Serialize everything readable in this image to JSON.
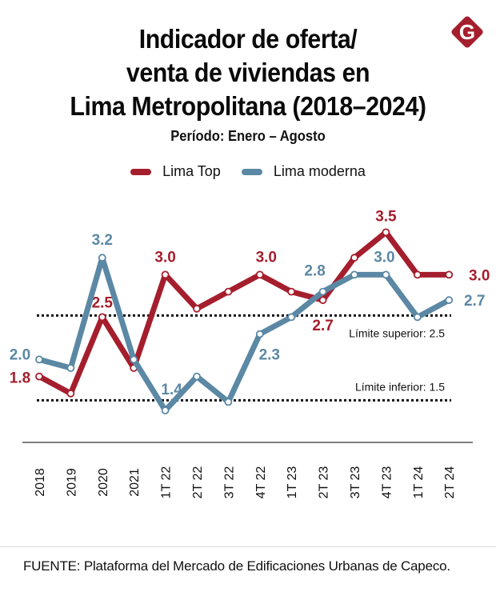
{
  "header": {
    "title_lines": [
      "Indicador de oferta/",
      "venta de viviendas en",
      "Lima Metropolitana (2018–2024)"
    ],
    "subtitle": "Período: Enero – Agosto",
    "logo": {
      "icon": "g-diamond-logo-icon",
      "letter": "G",
      "color": "#A51E2D"
    }
  },
  "footer": {
    "source": "FUENTE: Plataforma del Mercado de Edificaciones Urbanas de Capeco."
  },
  "chart_data": {
    "type": "line",
    "title": "Indicador de oferta/venta de viviendas en Lima Metropolitana (2018–2024)",
    "subtitle": "Período: Enero – Agosto",
    "xlabel": "",
    "ylabel": "",
    "grid": false,
    "legend_position": "top-center",
    "ylim": [
      1.0,
      3.8
    ],
    "categories": [
      "2018",
      "2019",
      "2020",
      "2021",
      "1T 22",
      "2T 22",
      "3T 22",
      "4T 22",
      "1T 23",
      "2T 23",
      "3T 23",
      "4T 23",
      "1T 24",
      "2T 24"
    ],
    "series": [
      {
        "name": "Lima Top",
        "color": "#A51E2D",
        "values": [
          1.8,
          1.6,
          2.5,
          1.9,
          3.0,
          2.6,
          2.8,
          3.0,
          2.8,
          2.7,
          3.2,
          3.5,
          3.0,
          3.0
        ],
        "data_labels": [
          {
            "index": 0,
            "text": "1.8"
          },
          {
            "index": 2,
            "text": "2.5"
          },
          {
            "index": 4,
            "text": "3.0"
          },
          {
            "index": 7,
            "text": "3.0"
          },
          {
            "index": 9,
            "text": "2.7"
          },
          {
            "index": 11,
            "text": "3.5"
          },
          {
            "index": 13,
            "text": "3.0"
          }
        ]
      },
      {
        "name": "Lima moderna",
        "color": "#5B88A4",
        "values": [
          2.0,
          1.9,
          3.2,
          2.0,
          1.4,
          1.8,
          1.5,
          2.3,
          2.5,
          2.8,
          3.0,
          3.0,
          2.5,
          2.7
        ],
        "data_labels": [
          {
            "index": 0,
            "text": "2.0"
          },
          {
            "index": 2,
            "text": "3.2"
          },
          {
            "index": 4,
            "text": "1.4"
          },
          {
            "index": 7,
            "text": "2.3"
          },
          {
            "index": 9,
            "text": "2.8"
          },
          {
            "index": 11,
            "text": "3.0"
          },
          {
            "index": 13,
            "text": "2.7"
          }
        ]
      }
    ],
    "reference_lines": [
      {
        "name": "upper-limit",
        "value": 2.5,
        "label": "Límite superior: 2.5",
        "style": "dotted",
        "color": "#111111"
      },
      {
        "name": "lower-limit",
        "value": 1.5,
        "label": "Límite inferior: 1.5",
        "style": "dotted",
        "color": "#111111"
      }
    ]
  }
}
